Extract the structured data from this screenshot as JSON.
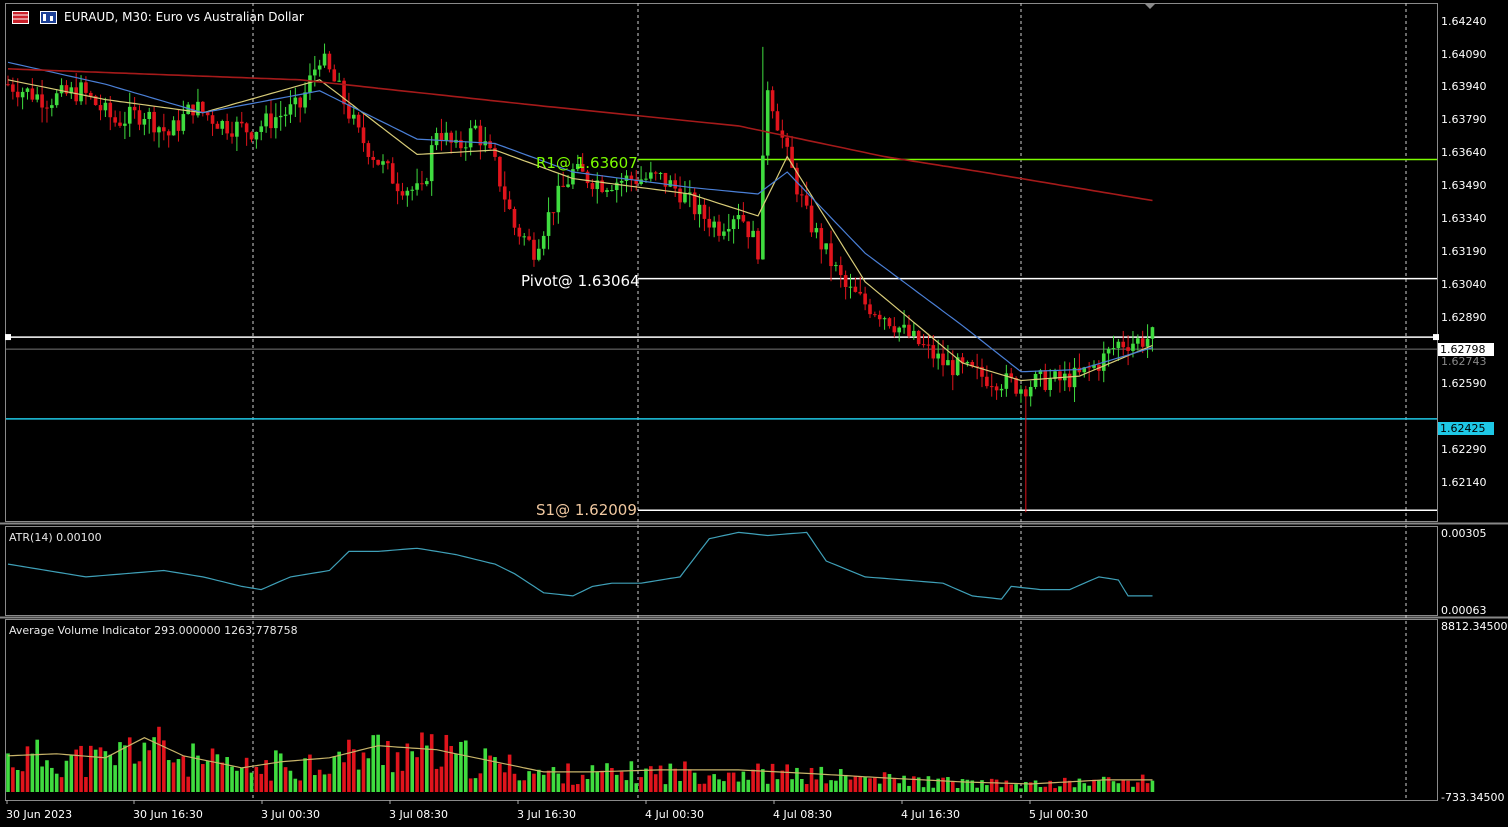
{
  "title": {
    "symbol_period": "EURAUD, M30:",
    "description": "Euro vs Australian Dollar"
  },
  "icons": [
    "chart-type-icon",
    "chart-properties-icon"
  ],
  "colors": {
    "background": "#000000",
    "bull_candle": "#3fdc3f",
    "bear_candle": "#e0141c",
    "ma_fast": "#d8cc78",
    "ma_mid": "#4a7fd6",
    "ma_slow": "#a51a1a",
    "r1_line": "#7cfc00",
    "pivot_line": "#ffffff",
    "s1_line": "#ffffff",
    "bid_line": "#ffffff",
    "alert_line": "#1ec8e6",
    "atr_line": "#3fa0b8",
    "volume_avg_line": "#c8b46a"
  },
  "levels": {
    "r1": "R1@ 1.63607",
    "pivot": "Pivot@ 1.63064",
    "s1": "S1@ 1.62009"
  },
  "price_axis": [
    "1.64240",
    "1.64090",
    "1.63940",
    "1.63790",
    "1.63640",
    "1.63490",
    "1.63340",
    "1.63190",
    "1.63040",
    "1.62890",
    "1.62590",
    "1.62290",
    "1.62140"
  ],
  "price_tags": {
    "bid": "1.62798",
    "bid_hidden": "1.62743",
    "alert": "1.62425"
  },
  "atr": {
    "label": "ATR(14) 0.00100",
    "axis_top": "0.00305",
    "axis_bottom": "0.00063"
  },
  "volume": {
    "label": "Average Volume Indicator 293.000000 1263.778758",
    "axis_top": "8812.34500",
    "axis_bottom": "-733.34500"
  },
  "time_axis": [
    "30 Jun 2023",
    "30 Jun 16:30",
    "3 Jul 00:30",
    "3 Jul 08:30",
    "3 Jul 16:30",
    "4 Jul 00:30",
    "4 Jul 08:30",
    "4 Jul 16:30",
    "5 Jul 00:30"
  ],
  "chart_data": {
    "type": "candlestick",
    "symbol": "EURAUD",
    "timeframe": "M30",
    "ylim": [
      1.6196,
      1.6432
    ],
    "close_path": [
      [
        0,
        1.6395
      ],
      [
        8,
        1.6388
      ],
      [
        15,
        1.6392
      ],
      [
        22,
        1.6378
      ],
      [
        28,
        1.6382
      ],
      [
        33,
        1.6372
      ],
      [
        38,
        1.6385
      ],
      [
        44,
        1.6377
      ],
      [
        50,
        1.6374
      ],
      [
        55,
        1.638
      ],
      [
        60,
        1.6385
      ],
      [
        64,
        1.6408
      ],
      [
        68,
        1.6392
      ],
      [
        72,
        1.6372
      ],
      [
        76,
        1.636
      ],
      [
        80,
        1.635
      ],
      [
        85,
        1.6345
      ],
      [
        88,
        1.6375
      ],
      [
        92,
        1.6365
      ],
      [
        96,
        1.6375
      ],
      [
        100,
        1.6358
      ],
      [
        104,
        1.633
      ],
      [
        108,
        1.632
      ],
      [
        112,
        1.634
      ],
      [
        116,
        1.6355
      ],
      [
        122,
        1.635
      ],
      [
        128,
        1.6352
      ],
      [
        134,
        1.6352
      ],
      [
        138,
        1.6346
      ],
      [
        142,
        1.6336
      ],
      [
        146,
        1.633
      ],
      [
        150,
        1.6338
      ],
      [
        154,
        1.632
      ],
      [
        156,
        1.6395
      ],
      [
        158,
        1.6378
      ],
      [
        160,
        1.6362
      ],
      [
        164,
        1.6335
      ],
      [
        168,
        1.6318
      ],
      [
        172,
        1.6302
      ],
      [
        176,
        1.6295
      ],
      [
        180,
        1.629
      ],
      [
        184,
        1.6282
      ],
      [
        188,
        1.6275
      ],
      [
        192,
        1.6268
      ],
      [
        196,
        1.6265
      ],
      [
        200,
        1.6262
      ],
      [
        204,
        1.626
      ],
      [
        208,
        1.6257
      ],
      [
        212,
        1.626
      ],
      [
        216,
        1.626
      ],
      [
        220,
        1.6262
      ],
      [
        224,
        1.6268
      ],
      [
        228,
        1.6277
      ],
      [
        232,
        1.6278
      ],
      [
        235,
        1.628
      ]
    ],
    "moving_averages": [
      {
        "name": "fast",
        "points": [
          [
            0,
            1.6397
          ],
          [
            20,
            1.6388
          ],
          [
            40,
            1.6382
          ],
          [
            64,
            1.6397
          ],
          [
            84,
            1.6363
          ],
          [
            100,
            1.6365
          ],
          [
            116,
            1.6352
          ],
          [
            140,
            1.6345
          ],
          [
            154,
            1.6335
          ],
          [
            160,
            1.6362
          ],
          [
            176,
            1.6305
          ],
          [
            196,
            1.6268
          ],
          [
            208,
            1.626
          ],
          [
            220,
            1.6262
          ],
          [
            235,
            1.6276
          ]
        ]
      },
      {
        "name": "mid",
        "points": [
          [
            0,
            1.6405
          ],
          [
            20,
            1.6395
          ],
          [
            40,
            1.6382
          ],
          [
            64,
            1.6392
          ],
          [
            84,
            1.637
          ],
          [
            100,
            1.6368
          ],
          [
            116,
            1.6355
          ],
          [
            140,
            1.6348
          ],
          [
            154,
            1.6345
          ],
          [
            160,
            1.6355
          ],
          [
            176,
            1.6318
          ],
          [
            196,
            1.6285
          ],
          [
            208,
            1.6264
          ],
          [
            220,
            1.6265
          ],
          [
            235,
            1.6275
          ]
        ]
      },
      {
        "name": "slow",
        "points": [
          [
            0,
            1.6402
          ],
          [
            60,
            1.6397
          ],
          [
            110,
            1.6385
          ],
          [
            150,
            1.6376
          ],
          [
            180,
            1.6362
          ],
          [
            200,
            1.6355
          ],
          [
            235,
            1.6342
          ]
        ]
      }
    ],
    "levels": {
      "r1": 1.63607,
      "pivot": 1.63064,
      "s1": 1.62009,
      "bid": 1.62798,
      "alert": 1.62425
    },
    "atr_path": [
      [
        0,
        0.002
      ],
      [
        8,
        0.0018
      ],
      [
        16,
        0.0016
      ],
      [
        24,
        0.0017
      ],
      [
        32,
        0.0018
      ],
      [
        40,
        0.0016
      ],
      [
        48,
        0.0013
      ],
      [
        52,
        0.0012
      ],
      [
        58,
        0.0016
      ],
      [
        66,
        0.0018
      ],
      [
        70,
        0.0024
      ],
      [
        76,
        0.0024
      ],
      [
        84,
        0.0025
      ],
      [
        92,
        0.0023
      ],
      [
        100,
        0.002
      ],
      [
        104,
        0.0017
      ],
      [
        110,
        0.0011
      ],
      [
        116,
        0.001
      ],
      [
        120,
        0.0013
      ],
      [
        124,
        0.0014
      ],
      [
        130,
        0.0014
      ],
      [
        138,
        0.0016
      ],
      [
        144,
        0.0028
      ],
      [
        150,
        0.003
      ],
      [
        156,
        0.0029
      ],
      [
        164,
        0.003
      ],
      [
        168,
        0.0021
      ],
      [
        176,
        0.0016
      ],
      [
        184,
        0.0015
      ],
      [
        192,
        0.0014
      ],
      [
        198,
        0.001
      ],
      [
        204,
        0.0009
      ],
      [
        206,
        0.0013
      ],
      [
        212,
        0.0012
      ],
      [
        218,
        0.0012
      ],
      [
        224,
        0.0016
      ],
      [
        228,
        0.0015
      ],
      [
        230,
        0.001
      ],
      [
        235,
        0.001
      ]
    ],
    "volume_avg_path": [
      [
        0,
        1800
      ],
      [
        10,
        1900
      ],
      [
        20,
        1700
      ],
      [
        28,
        2700
      ],
      [
        36,
        1800
      ],
      [
        48,
        1200
      ],
      [
        56,
        1500
      ],
      [
        66,
        1700
      ],
      [
        76,
        2300
      ],
      [
        88,
        2100
      ],
      [
        100,
        1500
      ],
      [
        110,
        1000
      ],
      [
        120,
        1000
      ],
      [
        134,
        1100
      ],
      [
        150,
        1100
      ],
      [
        166,
        900
      ],
      [
        180,
        700
      ],
      [
        196,
        500
      ],
      [
        210,
        400
      ],
      [
        225,
        600
      ],
      [
        235,
        600
      ]
    ]
  }
}
